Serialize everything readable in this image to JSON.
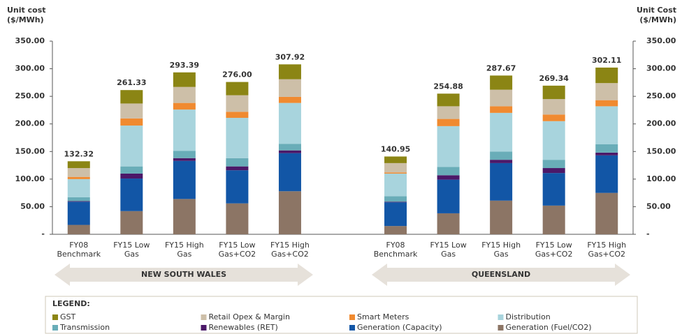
{
  "chart_data": {
    "type": "bar",
    "stacked": true,
    "y_label": [
      "Unit cost",
      "($/MWh)"
    ],
    "y2_label": [
      "Unit Cost",
      "($/MWh)"
    ],
    "categories": [
      "FY08\nBenchmark",
      "FY15 Low\nGas",
      "FY15 High\nGas",
      "FY15 Low\nGas+CO2",
      "FY15 High\nGas+CO2",
      null,
      "FY08\nBenchmark",
      "FY15 Low\nGas",
      "FY15 High\nGas",
      "FY15 Low\nGas+CO2",
      "FY15 High\nGas+CO2"
    ],
    "group_labels": [
      "NEW SOUTH WALES",
      "QUEENSLAND"
    ],
    "legend_title": "LEGEND:",
    "series": [
      {
        "name": "GST",
        "color": "#8b8514",
        "values": [
          12.32,
          24.33,
          26.39,
          24,
          26.92,
          null,
          11.95,
          22.88,
          25.67,
          24.34,
          28.11
        ]
      },
      {
        "name": "Retail Opex & Margin",
        "color": "#cdbfa8",
        "values": [
          16,
          27,
          29,
          30,
          32,
          null,
          17,
          23,
          30,
          28,
          31
        ]
      },
      {
        "name": "Smart Meters",
        "color": "#f08a30",
        "values": [
          4,
          13,
          12,
          11,
          11,
          null,
          2,
          13,
          12,
          12,
          11
        ]
      },
      {
        "name": "Distribution",
        "color": "#a8d4dd",
        "values": [
          33,
          74,
          75,
          73,
          74,
          null,
          41,
          74,
          70,
          70,
          69
        ]
      },
      {
        "name": "Transmission",
        "color": "#69adb8",
        "values": [
          7,
          13,
          13,
          15,
          12,
          null,
          10,
          15,
          15,
          15,
          15
        ]
      },
      {
        "name": "Renewables (RET)",
        "color": "#4b1868",
        "values": [
          1,
          9,
          5,
          7,
          5,
          null,
          1,
          8,
          6,
          9,
          5
        ]
      },
      {
        "name": "Generation (Capacity)",
        "color": "#1256a6",
        "values": [
          42,
          59,
          69,
          60,
          69,
          null,
          43,
          61,
          68,
          59,
          68
        ]
      },
      {
        "name": "Generation (Fuel/CO2)",
        "color": "#8c7565",
        "values": [
          17,
          42,
          64,
          56,
          78,
          null,
          15,
          38,
          61,
          52,
          75
        ]
      }
    ],
    "totals": [
      132.32,
      261.33,
      293.39,
      276,
      307.92,
      null,
      140.95,
      254.88,
      287.67,
      269.34,
      302.11
    ],
    "total_labels": [
      "132.32",
      "261.33",
      "293.39",
      "276.00",
      "307.92",
      null,
      "140.95",
      "254.88",
      "287.67",
      "269.34",
      "302.11"
    ],
    "ylim": [
      0,
      350
    ],
    "yticks": [
      {
        "value": 0,
        "label": "-"
      },
      {
        "value": 50,
        "label": "50.00"
      },
      {
        "value": 100,
        "label": "100.00"
      },
      {
        "value": 150,
        "label": "150.00"
      },
      {
        "value": 200,
        "label": "200.00"
      },
      {
        "value": 250,
        "label": "250.00"
      },
      {
        "value": 300,
        "label": "300.00"
      },
      {
        "value": 350,
        "label": "350.00"
      }
    ],
    "y2lim": [
      0,
      350
    ],
    "y2ticks": [
      {
        "value": 0,
        "label": "-"
      },
      {
        "value": 50,
        "label": "50.00"
      },
      {
        "value": 100,
        "label": "100.00"
      },
      {
        "value": 150,
        "label": "150.00"
      },
      {
        "value": 200,
        "label": "200.00"
      },
      {
        "value": 250,
        "label": "250.00"
      },
      {
        "value": 300,
        "label": "300.00"
      },
      {
        "value": 350,
        "label": "350.00"
      }
    ]
  }
}
